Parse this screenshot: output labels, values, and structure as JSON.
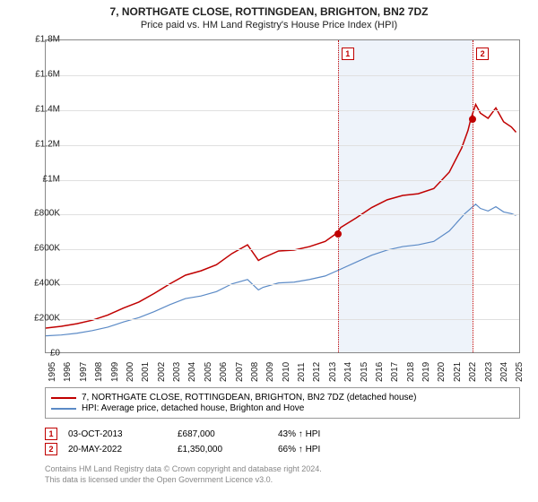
{
  "title": "7, NORTHGATE CLOSE, ROTTINGDEAN, BRIGHTON, BN2 7DZ",
  "subtitle": "Price paid vs. HM Land Registry's House Price Index (HPI)",
  "chart": {
    "type": "line",
    "background_color": "#ffffff",
    "grid_color": "#e0e0e0",
    "border_color": "#888888",
    "shaded_region_color": "#eef3fa",
    "shaded_region_start_year": 2013.75,
    "shaded_region_end_year": 2022.4,
    "xlim": [
      1995,
      2025.5
    ],
    "x_ticks": [
      1995,
      1996,
      1997,
      1998,
      1999,
      2000,
      2001,
      2002,
      2003,
      2004,
      2005,
      2006,
      2007,
      2008,
      2009,
      2010,
      2011,
      2012,
      2013,
      2014,
      2015,
      2016,
      2017,
      2018,
      2019,
      2020,
      2021,
      2022,
      2023,
      2024,
      2025
    ],
    "ylim": [
      0,
      1800000
    ],
    "y_ticks": [
      0,
      200000,
      400000,
      600000,
      800000,
      1000000,
      1200000,
      1400000,
      1600000,
      1800000
    ],
    "y_tick_labels": [
      "£0",
      "£200K",
      "£400K",
      "£600K",
      "£800K",
      "£1M",
      "£1.2M",
      "£1.4M",
      "£1.6M",
      "£1.8M"
    ],
    "label_fontsize": 10,
    "series": [
      {
        "name": "7, NORTHGATE CLOSE, ROTTINGDEAN, BRIGHTON, BN2 7DZ (detached house)",
        "color": "#c00000",
        "line_width": 1.5,
        "points": [
          [
            1995,
            140000
          ],
          [
            1996,
            150000
          ],
          [
            1997,
            165000
          ],
          [
            1998,
            185000
          ],
          [
            1999,
            215000
          ],
          [
            2000,
            255000
          ],
          [
            2001,
            290000
          ],
          [
            2002,
            340000
          ],
          [
            2003,
            395000
          ],
          [
            2004,
            445000
          ],
          [
            2005,
            470000
          ],
          [
            2006,
            505000
          ],
          [
            2007,
            570000
          ],
          [
            2008,
            620000
          ],
          [
            2008.7,
            530000
          ],
          [
            2009,
            545000
          ],
          [
            2010,
            585000
          ],
          [
            2011,
            590000
          ],
          [
            2012,
            610000
          ],
          [
            2013,
            640000
          ],
          [
            2013.75,
            687000
          ],
          [
            2014,
            720000
          ],
          [
            2015,
            775000
          ],
          [
            2016,
            835000
          ],
          [
            2017,
            880000
          ],
          [
            2018,
            905000
          ],
          [
            2019,
            915000
          ],
          [
            2020,
            945000
          ],
          [
            2021,
            1040000
          ],
          [
            2021.8,
            1180000
          ],
          [
            2022.2,
            1280000
          ],
          [
            2022.4,
            1350000
          ],
          [
            2022.7,
            1430000
          ],
          [
            2023,
            1380000
          ],
          [
            2023.5,
            1350000
          ],
          [
            2024,
            1410000
          ],
          [
            2024.5,
            1330000
          ],
          [
            2025,
            1300000
          ],
          [
            2025.3,
            1270000
          ]
        ]
      },
      {
        "name": "HPI: Average price, detached house, Brighton and Hove",
        "color": "#5b8ac6",
        "line_width": 1.2,
        "points": [
          [
            1995,
            95000
          ],
          [
            1996,
            100000
          ],
          [
            1997,
            110000
          ],
          [
            1998,
            125000
          ],
          [
            1999,
            145000
          ],
          [
            2000,
            175000
          ],
          [
            2001,
            200000
          ],
          [
            2002,
            235000
          ],
          [
            2003,
            275000
          ],
          [
            2004,
            310000
          ],
          [
            2005,
            325000
          ],
          [
            2006,
            350000
          ],
          [
            2007,
            395000
          ],
          [
            2008,
            420000
          ],
          [
            2008.7,
            360000
          ],
          [
            2009,
            375000
          ],
          [
            2010,
            400000
          ],
          [
            2011,
            405000
          ],
          [
            2012,
            420000
          ],
          [
            2013,
            440000
          ],
          [
            2014,
            480000
          ],
          [
            2015,
            520000
          ],
          [
            2016,
            560000
          ],
          [
            2017,
            590000
          ],
          [
            2018,
            610000
          ],
          [
            2019,
            620000
          ],
          [
            2020,
            640000
          ],
          [
            2021,
            700000
          ],
          [
            2022,
            800000
          ],
          [
            2022.7,
            855000
          ],
          [
            2023,
            830000
          ],
          [
            2023.5,
            815000
          ],
          [
            2024,
            840000
          ],
          [
            2024.5,
            810000
          ],
          [
            2025,
            800000
          ],
          [
            2025.3,
            790000
          ]
        ]
      }
    ],
    "markers": [
      {
        "label": "1",
        "year": 2013.75,
        "value": 687000
      },
      {
        "label": "2",
        "year": 2022.4,
        "value": 1350000
      }
    ],
    "marker_line_color": "#c00000",
    "marker_box_border": "#c00000",
    "marker_point_color": "#c00000"
  },
  "legend": {
    "items": [
      {
        "color": "#c00000",
        "label": "7, NORTHGATE CLOSE, ROTTINGDEAN, BRIGHTON, BN2 7DZ (detached house)"
      },
      {
        "color": "#5b8ac6",
        "label": "HPI: Average price, detached house, Brighton and Hove"
      }
    ]
  },
  "transactions": [
    {
      "marker": "1",
      "date": "03-OCT-2013",
      "price": "£687,000",
      "pct": "43% ↑ HPI"
    },
    {
      "marker": "2",
      "date": "20-MAY-2022",
      "price": "£1,350,000",
      "pct": "66% ↑ HPI"
    }
  ],
  "footer": {
    "line1": "Contains HM Land Registry data © Crown copyright and database right 2024.",
    "line2": "This data is licensed under the Open Government Licence v3.0."
  }
}
